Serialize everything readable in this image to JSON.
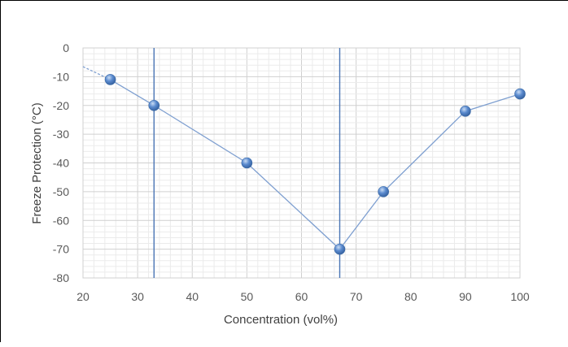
{
  "chart_data": {
    "type": "scatter",
    "title": "",
    "xlabel": "Concentration (vol%)",
    "ylabel": "Freeze Protection (°C)",
    "xlim": [
      20,
      100
    ],
    "ylim": [
      -80,
      0
    ],
    "x_ticks": [
      20,
      30,
      40,
      50,
      60,
      70,
      80,
      90,
      100
    ],
    "y_ticks": [
      0,
      -10,
      -20,
      -30,
      -40,
      -50,
      -60,
      -70,
      -80
    ],
    "x_minor_step": 2,
    "y_minor_step": 2,
    "grid": true,
    "legend": "none",
    "series": [
      {
        "x": [
          25,
          33,
          50,
          67,
          75,
          90,
          100
        ],
        "y": [
          -11,
          -20,
          -40,
          -70,
          -50,
          -22,
          -16
        ]
      }
    ],
    "extrapolation": {
      "style": "dashed",
      "from": [
        20,
        -6.5
      ],
      "to": [
        25,
        -11
      ]
    },
    "vertical_lines": [
      33,
      67
    ],
    "colors": {
      "line": "#7e9fd0",
      "marker": "#4f81bd",
      "vertical_line": "#4a75b5",
      "grid": "#d9d9d9",
      "text": "#595959"
    }
  }
}
